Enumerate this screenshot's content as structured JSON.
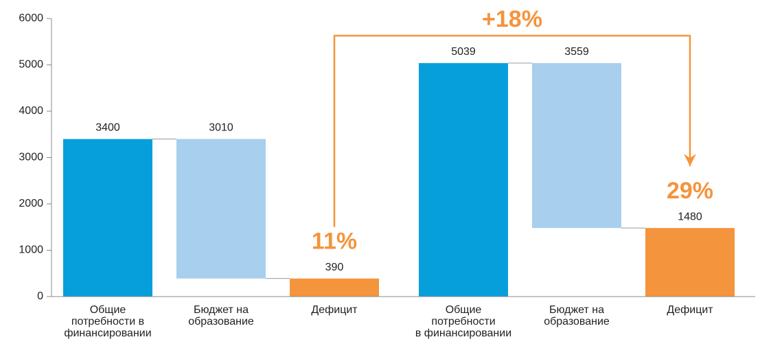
{
  "chart_data": {
    "type": "waterfall",
    "categories": [
      [
        "Общие",
        "потребности в",
        "финансировании"
      ],
      [
        "Бюджет на",
        "образование"
      ],
      [
        "Дефицит"
      ],
      [
        "Общие",
        "потребности",
        "в финансировании"
      ],
      [
        "Бюджет на",
        "образование"
      ],
      [
        "Дефицит"
      ]
    ],
    "values": [
      3400,
      3010,
      390,
      5039,
      3559,
      1480
    ],
    "measure": [
      "absolute",
      "decrease",
      "total",
      "absolute",
      "decrease",
      "total"
    ],
    "colors": [
      "#079fdb",
      "#a8cfee",
      "#f4943c",
      "#079fdb",
      "#a8cfee",
      "#f4943c"
    ],
    "ylim": [
      0,
      6000
    ],
    "yticks": [
      0,
      1000,
      2000,
      3000,
      4000,
      5000,
      6000
    ],
    "annotations": [
      {
        "text": "11%",
        "category": 2
      },
      {
        "text": "29%",
        "category": 5
      }
    ],
    "change": {
      "text": "+18%",
      "from": 2,
      "to": 5,
      "color": "#f4943c"
    }
  }
}
